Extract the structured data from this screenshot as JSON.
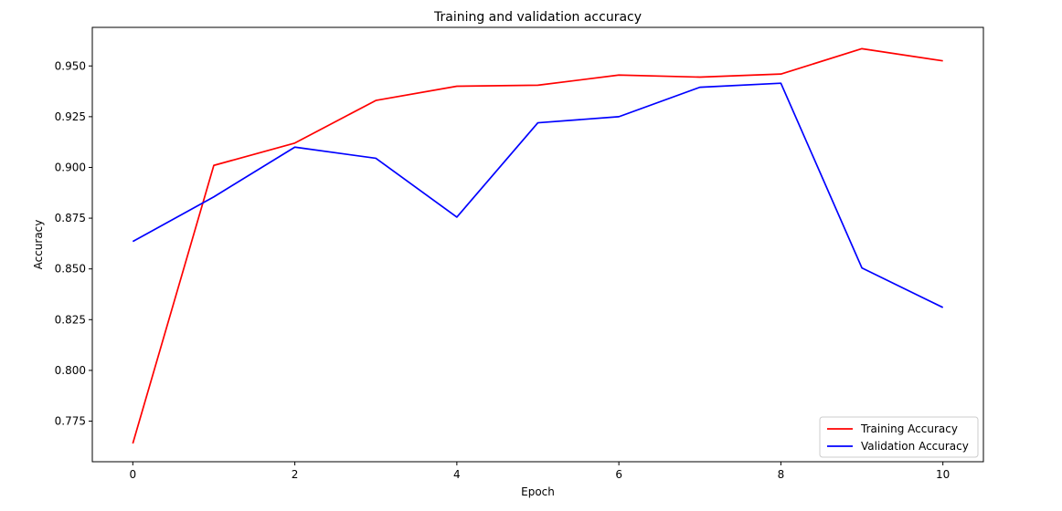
{
  "chart_data": {
    "type": "line",
    "title": "Training and validation accuracy",
    "xlabel": "Epoch",
    "ylabel": "Accuracy",
    "x": [
      0,
      1,
      2,
      3,
      4,
      5,
      6,
      7,
      8,
      9,
      10
    ],
    "xlim": [
      -0.5,
      10.5
    ],
    "ylim": [
      0.755,
      0.969
    ],
    "xticks": [
      0,
      2,
      4,
      6,
      8,
      10
    ],
    "xtick_labels": [
      "0",
      "2",
      "4",
      "6",
      "8",
      "10"
    ],
    "yticks": [
      0.775,
      0.8,
      0.825,
      0.85,
      0.875,
      0.9,
      0.925,
      0.95
    ],
    "ytick_labels": [
      "0.775",
      "0.800",
      "0.825",
      "0.850",
      "0.875",
      "0.900",
      "0.925",
      "0.950"
    ],
    "grid": false,
    "legend_position": "bottom-right",
    "series": [
      {
        "name": "Training Accuracy",
        "color": "#ff0000",
        "values": [
          0.764,
          0.901,
          0.912,
          0.933,
          0.94,
          0.9405,
          0.9455,
          0.9445,
          0.946,
          0.9585,
          0.9525
        ]
      },
      {
        "name": "Validation Accuracy",
        "color": "#0000ff",
        "values": [
          0.8635,
          0.8855,
          0.91,
          0.9045,
          0.8755,
          0.922,
          0.925,
          0.9395,
          0.9415,
          0.8505,
          0.831
        ]
      }
    ]
  }
}
